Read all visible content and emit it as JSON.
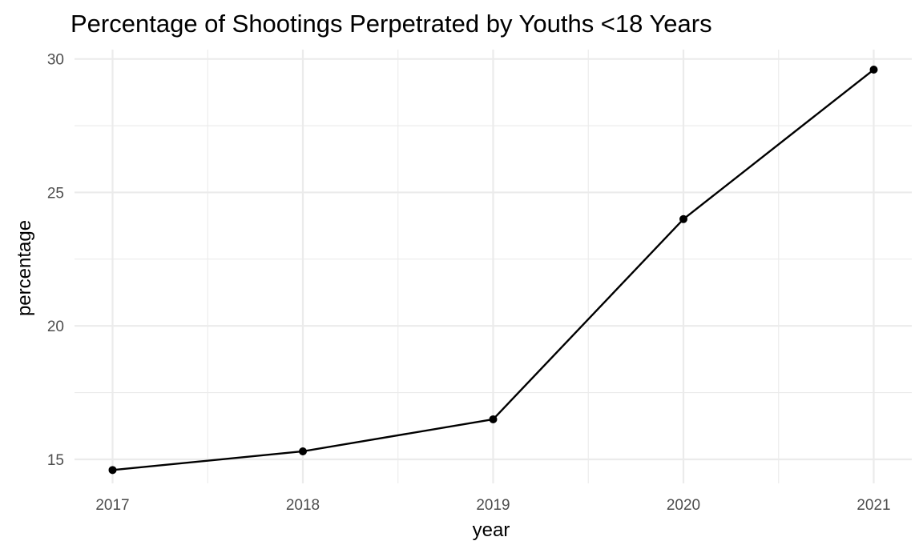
{
  "chart_data": {
    "type": "line",
    "title": "Percentage of Shootings Perpetrated by Youths <18 Years",
    "xlabel": "year",
    "ylabel": "percentage",
    "x": [
      2017,
      2018,
      2019,
      2020,
      2021
    ],
    "x_tick_labels": [
      "2017",
      "2018",
      "2019",
      "2020",
      "2021"
    ],
    "series": [
      {
        "name": "percentage",
        "values": [
          14.6,
          15.3,
          16.5,
          24.0,
          29.6
        ],
        "color": "#000000",
        "markers": true
      }
    ],
    "y_ticks": [
      15,
      20,
      25,
      30
    ],
    "y_tick_labels": [
      "15",
      "20",
      "25",
      "30"
    ],
    "xlim": [
      2016.8,
      2021.2
    ],
    "ylim": [
      14.1,
      30.35
    ],
    "grid": true,
    "legend": "none"
  }
}
